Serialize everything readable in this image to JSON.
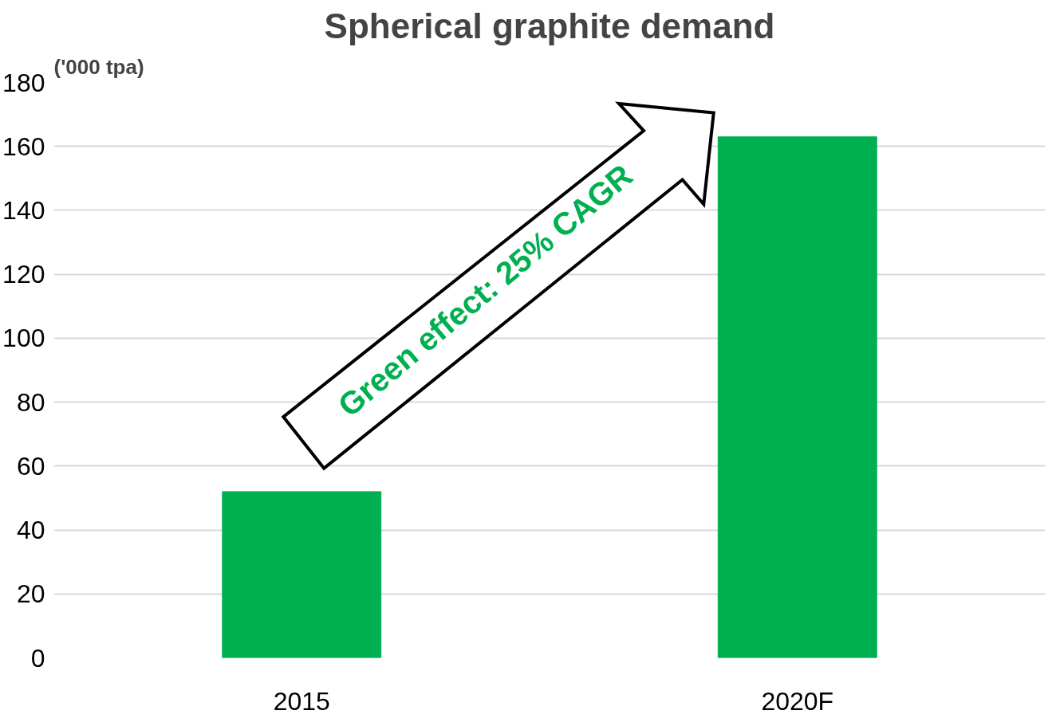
{
  "chart_data": {
    "type": "bar",
    "title": "Spherical graphite demand",
    "ylabel": "('000 tpa)",
    "categories": [
      "2015",
      "2020F"
    ],
    "series": [
      {
        "color": "#00b050",
        "values": [
          52,
          163
        ]
      }
    ],
    "ylim": [
      0,
      180
    ],
    "yticks": [
      0,
      20,
      40,
      60,
      80,
      100,
      120,
      140,
      160,
      180
    ],
    "grid": "y",
    "annotations": [
      "Green effect: 25% CAGR"
    ]
  }
}
